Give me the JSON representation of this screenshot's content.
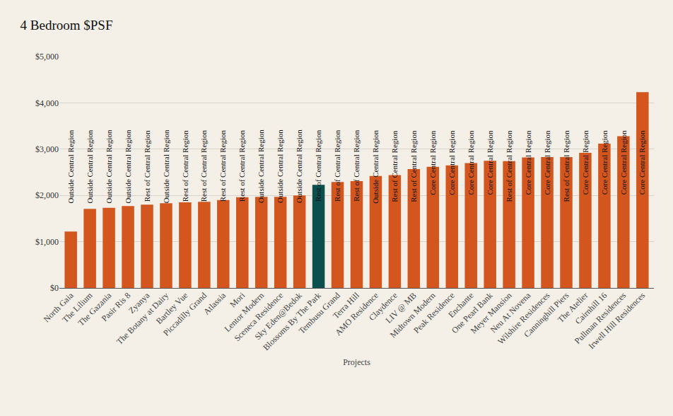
{
  "chart_data": {
    "type": "bar",
    "title": "4 Bedroom $PSF",
    "xlabel": "Projects",
    "categories": [
      "North Gaia",
      "The Lilium",
      "The Gazania",
      "Pasir Ris 8",
      "Zyanya",
      "The Botany at Dairy",
      "Bartley Vue",
      "Piccadilly Grand",
      "Atlassia",
      "Mori",
      "Lentor Modern",
      "Sceneca Residence",
      "Sky Eden@Bedok",
      "Blossoms By The Park",
      "Tembusu Grand",
      "Terra Hill",
      "AMO Residence",
      "Claydence",
      "LIV @ MB",
      "Midtown Modern",
      "Peak Residence",
      "Enchante",
      "One Pearl Bank",
      "Meyer Mansion",
      "Neu At Novena",
      "Wilshire Residences",
      "Canninghill Piers",
      "The Atelier",
      "Cairnhill 16",
      "Pullman Residences",
      "Irwell Hill Residences"
    ],
    "values": [
      1220,
      1710,
      1730,
      1770,
      1800,
      1830,
      1850,
      1860,
      1900,
      1960,
      1970,
      1970,
      2000,
      2230,
      2290,
      2310,
      2420,
      2440,
      2570,
      2620,
      2650,
      2700,
      2750,
      2740,
      2820,
      2830,
      2830,
      2920,
      3120,
      3280,
      4230
    ],
    "annotations": [
      "Outside Central Region",
      "Outside Central Region",
      "Outside Central Region",
      "Outside Central Region",
      "Rest of Central Region",
      "Outside Central Region",
      "Rest of Central Region",
      "Rest of Central Region",
      "Rest of Central Region",
      "Rest of Central Region",
      "Outside Central Region",
      "Outside Central Region",
      "Outside Central Region",
      "Rest of Central Region",
      "Rest of Central Region",
      "Rest of Central Region",
      "Outside Central Region",
      "Rest of Central Region",
      "Rest of Central Region",
      "Core Central Region",
      "Core Central Region",
      "Core Central Region",
      "Core Central Region",
      "Rest of Central Region",
      "Core Central Region",
      "Core Central Region",
      "Rest of Central Region",
      "Core Central Region",
      "Core Central Region",
      "Core Central Region",
      "Core Central Region"
    ],
    "colors": [
      "#d4561f",
      "#d4561f",
      "#d4561f",
      "#d4561f",
      "#d4561f",
      "#d4561f",
      "#d4561f",
      "#d4561f",
      "#d4561f",
      "#d4561f",
      "#d4561f",
      "#d4561f",
      "#d4561f",
      "#0b4f4f",
      "#d4561f",
      "#d4561f",
      "#d4561f",
      "#d4561f",
      "#d4561f",
      "#d4561f",
      "#d4561f",
      "#d4561f",
      "#d4561f",
      "#d4561f",
      "#d4561f",
      "#d4561f",
      "#d4561f",
      "#d4561f",
      "#d4561f",
      "#d4561f",
      "#d4561f"
    ],
    "ylim": [
      0,
      5000
    ],
    "yticks": [
      {
        "value": 0,
        "label": "$0"
      },
      {
        "value": 1000,
        "label": "$1,000"
      },
      {
        "value": 2000,
        "label": "$2,000"
      },
      {
        "value": 3000,
        "label": "$3,000"
      },
      {
        "value": 4000,
        "label": "$4,000"
      },
      {
        "value": 5000,
        "label": "$5,000"
      }
    ],
    "grid": true
  }
}
